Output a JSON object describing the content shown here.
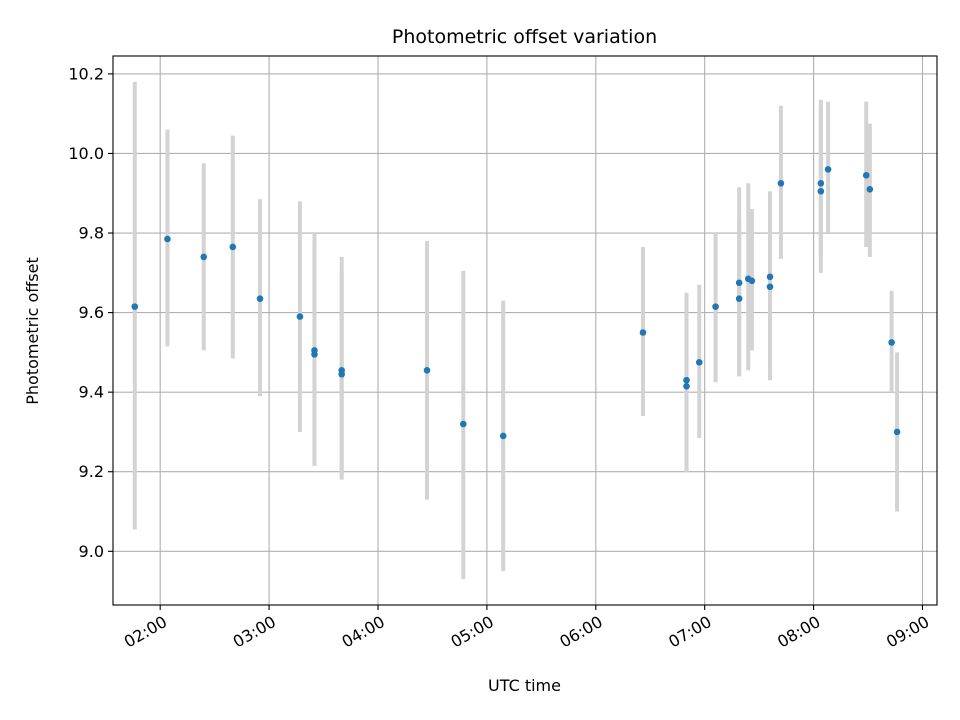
{
  "chart_data": {
    "type": "scatter",
    "title": "Photometric offset variation",
    "xlabel": "UTC time",
    "ylabel": "Photometric offset",
    "xlim": [
      "01:34",
      "09:08"
    ],
    "ylim": [
      8.865,
      10.245
    ],
    "grid": true,
    "xticks": [
      "02:00",
      "03:00",
      "04:00",
      "05:00",
      "06:00",
      "07:00",
      "08:00",
      "09:00"
    ],
    "yticks": [
      "9.0",
      "9.2",
      "9.4",
      "9.6",
      "9.8",
      "10.0",
      "10.2"
    ],
    "colors": {
      "point": "#1f77b4",
      "errorbar": "#d3d3d3",
      "grid": "#b0b0b0"
    },
    "points": [
      {
        "x": "01:46",
        "y": 9.615,
        "ylow": 9.055,
        "yhigh": 10.18
      },
      {
        "x": "02:04",
        "y": 9.785,
        "ylow": 9.515,
        "yhigh": 10.06
      },
      {
        "x": "02:24",
        "y": 9.74,
        "ylow": 9.505,
        "yhigh": 9.975
      },
      {
        "x": "02:40",
        "y": 9.765,
        "ylow": 9.485,
        "yhigh": 10.045
      },
      {
        "x": "02:55",
        "y": 9.635,
        "ylow": 9.39,
        "yhigh": 9.885
      },
      {
        "x": "03:17",
        "y": 9.59,
        "ylow": 9.3,
        "yhigh": 9.88
      },
      {
        "x": "03:25",
        "y": 9.505,
        "ylow": 9.215,
        "yhigh": 9.8
      },
      {
        "x": "03:25",
        "y": 9.495,
        "ylow": 9.215,
        "yhigh": 9.775
      },
      {
        "x": "03:40",
        "y": 9.455,
        "ylow": 9.18,
        "yhigh": 9.74
      },
      {
        "x": "03:40",
        "y": 9.445,
        "ylow": 9.19,
        "yhigh": 9.705
      },
      {
        "x": "04:27",
        "y": 9.455,
        "ylow": 9.13,
        "yhigh": 9.78
      },
      {
        "x": "04:47",
        "y": 9.32,
        "ylow": 8.93,
        "yhigh": 9.705
      },
      {
        "x": "05:09",
        "y": 9.29,
        "ylow": 8.95,
        "yhigh": 9.63
      },
      {
        "x": "06:26",
        "y": 9.55,
        "ylow": 9.34,
        "yhigh": 9.765
      },
      {
        "x": "06:50",
        "y": 9.43,
        "ylow": 9.2,
        "yhigh": 9.65
      },
      {
        "x": "06:50",
        "y": 9.415,
        "ylow": 9.2,
        "yhigh": 9.63
      },
      {
        "x": "06:57",
        "y": 9.475,
        "ylow": 9.285,
        "yhigh": 9.67
      },
      {
        "x": "07:06",
        "y": 9.615,
        "ylow": 9.425,
        "yhigh": 9.8
      },
      {
        "x": "07:19",
        "y": 9.675,
        "ylow": 9.44,
        "yhigh": 9.915
      },
      {
        "x": "07:19",
        "y": 9.635,
        "ylow": 9.44,
        "yhigh": 9.83
      },
      {
        "x": "07:24",
        "y": 9.685,
        "ylow": 9.455,
        "yhigh": 9.925
      },
      {
        "x": "07:26",
        "y": 9.68,
        "ylow": 9.505,
        "yhigh": 9.86
      },
      {
        "x": "07:36",
        "y": 9.69,
        "ylow": 9.47,
        "yhigh": 9.905
      },
      {
        "x": "07:36",
        "y": 9.665,
        "ylow": 9.43,
        "yhigh": 9.9
      },
      {
        "x": "07:42",
        "y": 9.925,
        "ylow": 9.735,
        "yhigh": 10.12
      },
      {
        "x": "08:04",
        "y": 9.925,
        "ylow": 9.74,
        "yhigh": 10.135
      },
      {
        "x": "08:04",
        "y": 9.905,
        "ylow": 9.7,
        "yhigh": 10.115
      },
      {
        "x": "08:08",
        "y": 9.96,
        "ylow": 9.8,
        "yhigh": 10.13
      },
      {
        "x": "08:29",
        "y": 9.945,
        "ylow": 9.765,
        "yhigh": 10.13
      },
      {
        "x": "08:31",
        "y": 9.91,
        "ylow": 9.74,
        "yhigh": 10.075
      },
      {
        "x": "08:43",
        "y": 9.525,
        "ylow": 9.4,
        "yhigh": 9.655
      },
      {
        "x": "08:46",
        "y": 9.3,
        "ylow": 9.1,
        "yhigh": 9.5
      }
    ]
  }
}
